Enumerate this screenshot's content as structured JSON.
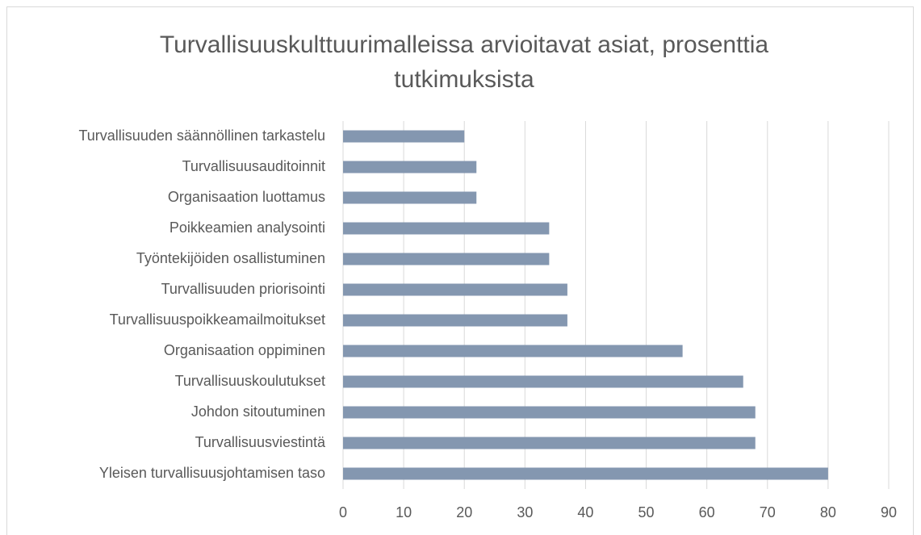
{
  "chart_data": {
    "type": "bar",
    "orientation": "horizontal",
    "title": "Turvallisuuskulttuurimalleissa arvioitavat asiat, prosenttia tutkimuksista",
    "categories": [
      "Turvallisuuden säännöllinen tarkastelu",
      "Turvallisuusauditoinnit",
      "Organisaation luottamus",
      "Poikkeamien analysointi",
      "Työntekijöiden osallistuminen",
      "Turvallisuuden priorisointi",
      "Turvallisuuspoikkeamailmoitukset",
      "Organisaation oppiminen",
      "Turvallisuuskoulutukset",
      "Johdon sitoutuminen",
      "Turvallisuusviestintä",
      "Yleisen turvallisuusjohtamisen taso"
    ],
    "values": [
      20,
      22,
      22,
      34,
      34,
      37,
      37,
      56,
      66,
      68,
      68,
      80
    ],
    "color": "#8497b0",
    "xlim": [
      0,
      90
    ],
    "xticks": [
      0,
      10,
      20,
      30,
      40,
      50,
      60,
      70,
      80,
      90
    ],
    "grid": true
  }
}
